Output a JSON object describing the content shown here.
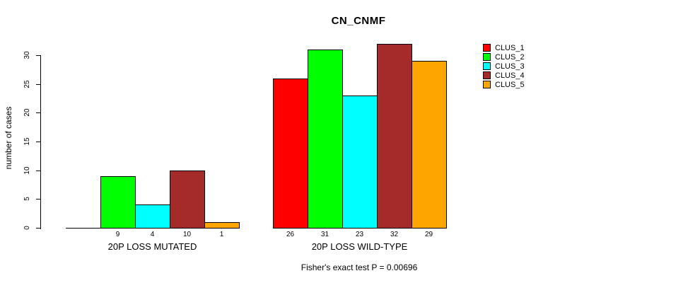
{
  "chart_data": {
    "type": "bar",
    "title": "CN_CNMF",
    "ylabel": "number of cases",
    "xlabel": "",
    "ylim": [
      0,
      30
    ],
    "yticks": [
      0,
      5,
      10,
      15,
      20,
      25,
      30
    ],
    "grid": false,
    "legend_position": "top-right",
    "series": [
      "CLUS_1",
      "CLUS_2",
      "CLUS_3",
      "CLUS_4",
      "CLUS_5"
    ],
    "colors": [
      "#FF0000",
      "#00FF00",
      "#00FFFF",
      "#A52A2A",
      "#FFA500"
    ],
    "groups": [
      {
        "label": "20P LOSS MUTATED",
        "values": [
          0,
          9,
          4,
          10,
          1
        ],
        "bar_labels": [
          "",
          "9",
          "4",
          "10",
          "1"
        ]
      },
      {
        "label": "20P LOSS WILD-TYPE",
        "values": [
          26,
          31,
          23,
          32,
          29
        ],
        "bar_labels": [
          "26",
          "31",
          "23",
          "32",
          "29"
        ]
      }
    ],
    "annotation": "Fisher's exact test P = 0.00696"
  }
}
